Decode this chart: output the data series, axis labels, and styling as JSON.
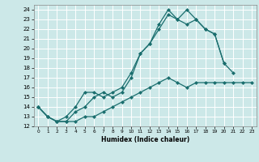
{
  "background_color": "#cce8e8",
  "grid_color": "#aacccc",
  "line_color": "#1a6e6e",
  "xlabel": "Humidex (Indice chaleur)",
  "xlim": [
    -0.5,
    23.5
  ],
  "ylim": [
    12,
    24.5
  ],
  "yticks": [
    12,
    13,
    14,
    15,
    16,
    17,
    18,
    19,
    20,
    21,
    22,
    23,
    24
  ],
  "xticks": [
    0,
    1,
    2,
    3,
    4,
    5,
    6,
    7,
    8,
    9,
    10,
    11,
    12,
    13,
    14,
    15,
    16,
    17,
    18,
    19,
    20,
    21,
    22,
    23
  ],
  "line1_x": [
    0,
    1,
    2,
    3,
    4,
    5,
    6,
    7,
    8,
    9,
    10,
    11,
    12,
    13,
    14,
    15,
    16,
    17,
    18,
    19,
    20,
    21,
    22,
    23
  ],
  "line1_y": [
    14.0,
    13.0,
    12.5,
    12.5,
    12.5,
    13.0,
    13.0,
    13.5,
    14.0,
    14.5,
    15.0,
    15.5,
    16.0,
    16.5,
    17.0,
    16.5,
    16.0,
    16.5,
    16.5,
    16.5,
    16.5,
    16.5,
    16.5,
    16.5
  ],
  "line2_x": [
    0,
    1,
    2,
    3,
    4,
    5,
    6,
    7,
    8,
    9,
    10,
    11,
    12,
    13,
    14,
    15,
    16,
    17,
    18,
    19,
    20,
    21
  ],
  "line2_y": [
    14.0,
    13.0,
    12.5,
    13.0,
    14.0,
    15.5,
    15.5,
    15.0,
    15.5,
    16.0,
    17.5,
    19.5,
    20.5,
    22.0,
    23.5,
    23.0,
    22.5,
    23.0,
    22.0,
    21.5,
    18.5,
    17.5
  ],
  "line3_x": [
    0,
    1,
    2,
    3,
    4,
    5,
    6,
    7,
    8,
    9,
    10,
    11,
    12,
    13,
    14,
    15,
    16,
    17,
    18,
    19,
    20
  ],
  "line3_y": [
    14.0,
    13.0,
    12.5,
    12.5,
    13.5,
    14.0,
    15.0,
    15.5,
    15.0,
    15.5,
    17.0,
    19.5,
    20.5,
    22.5,
    24.0,
    23.0,
    24.0,
    23.0,
    22.0,
    21.5,
    18.5
  ]
}
